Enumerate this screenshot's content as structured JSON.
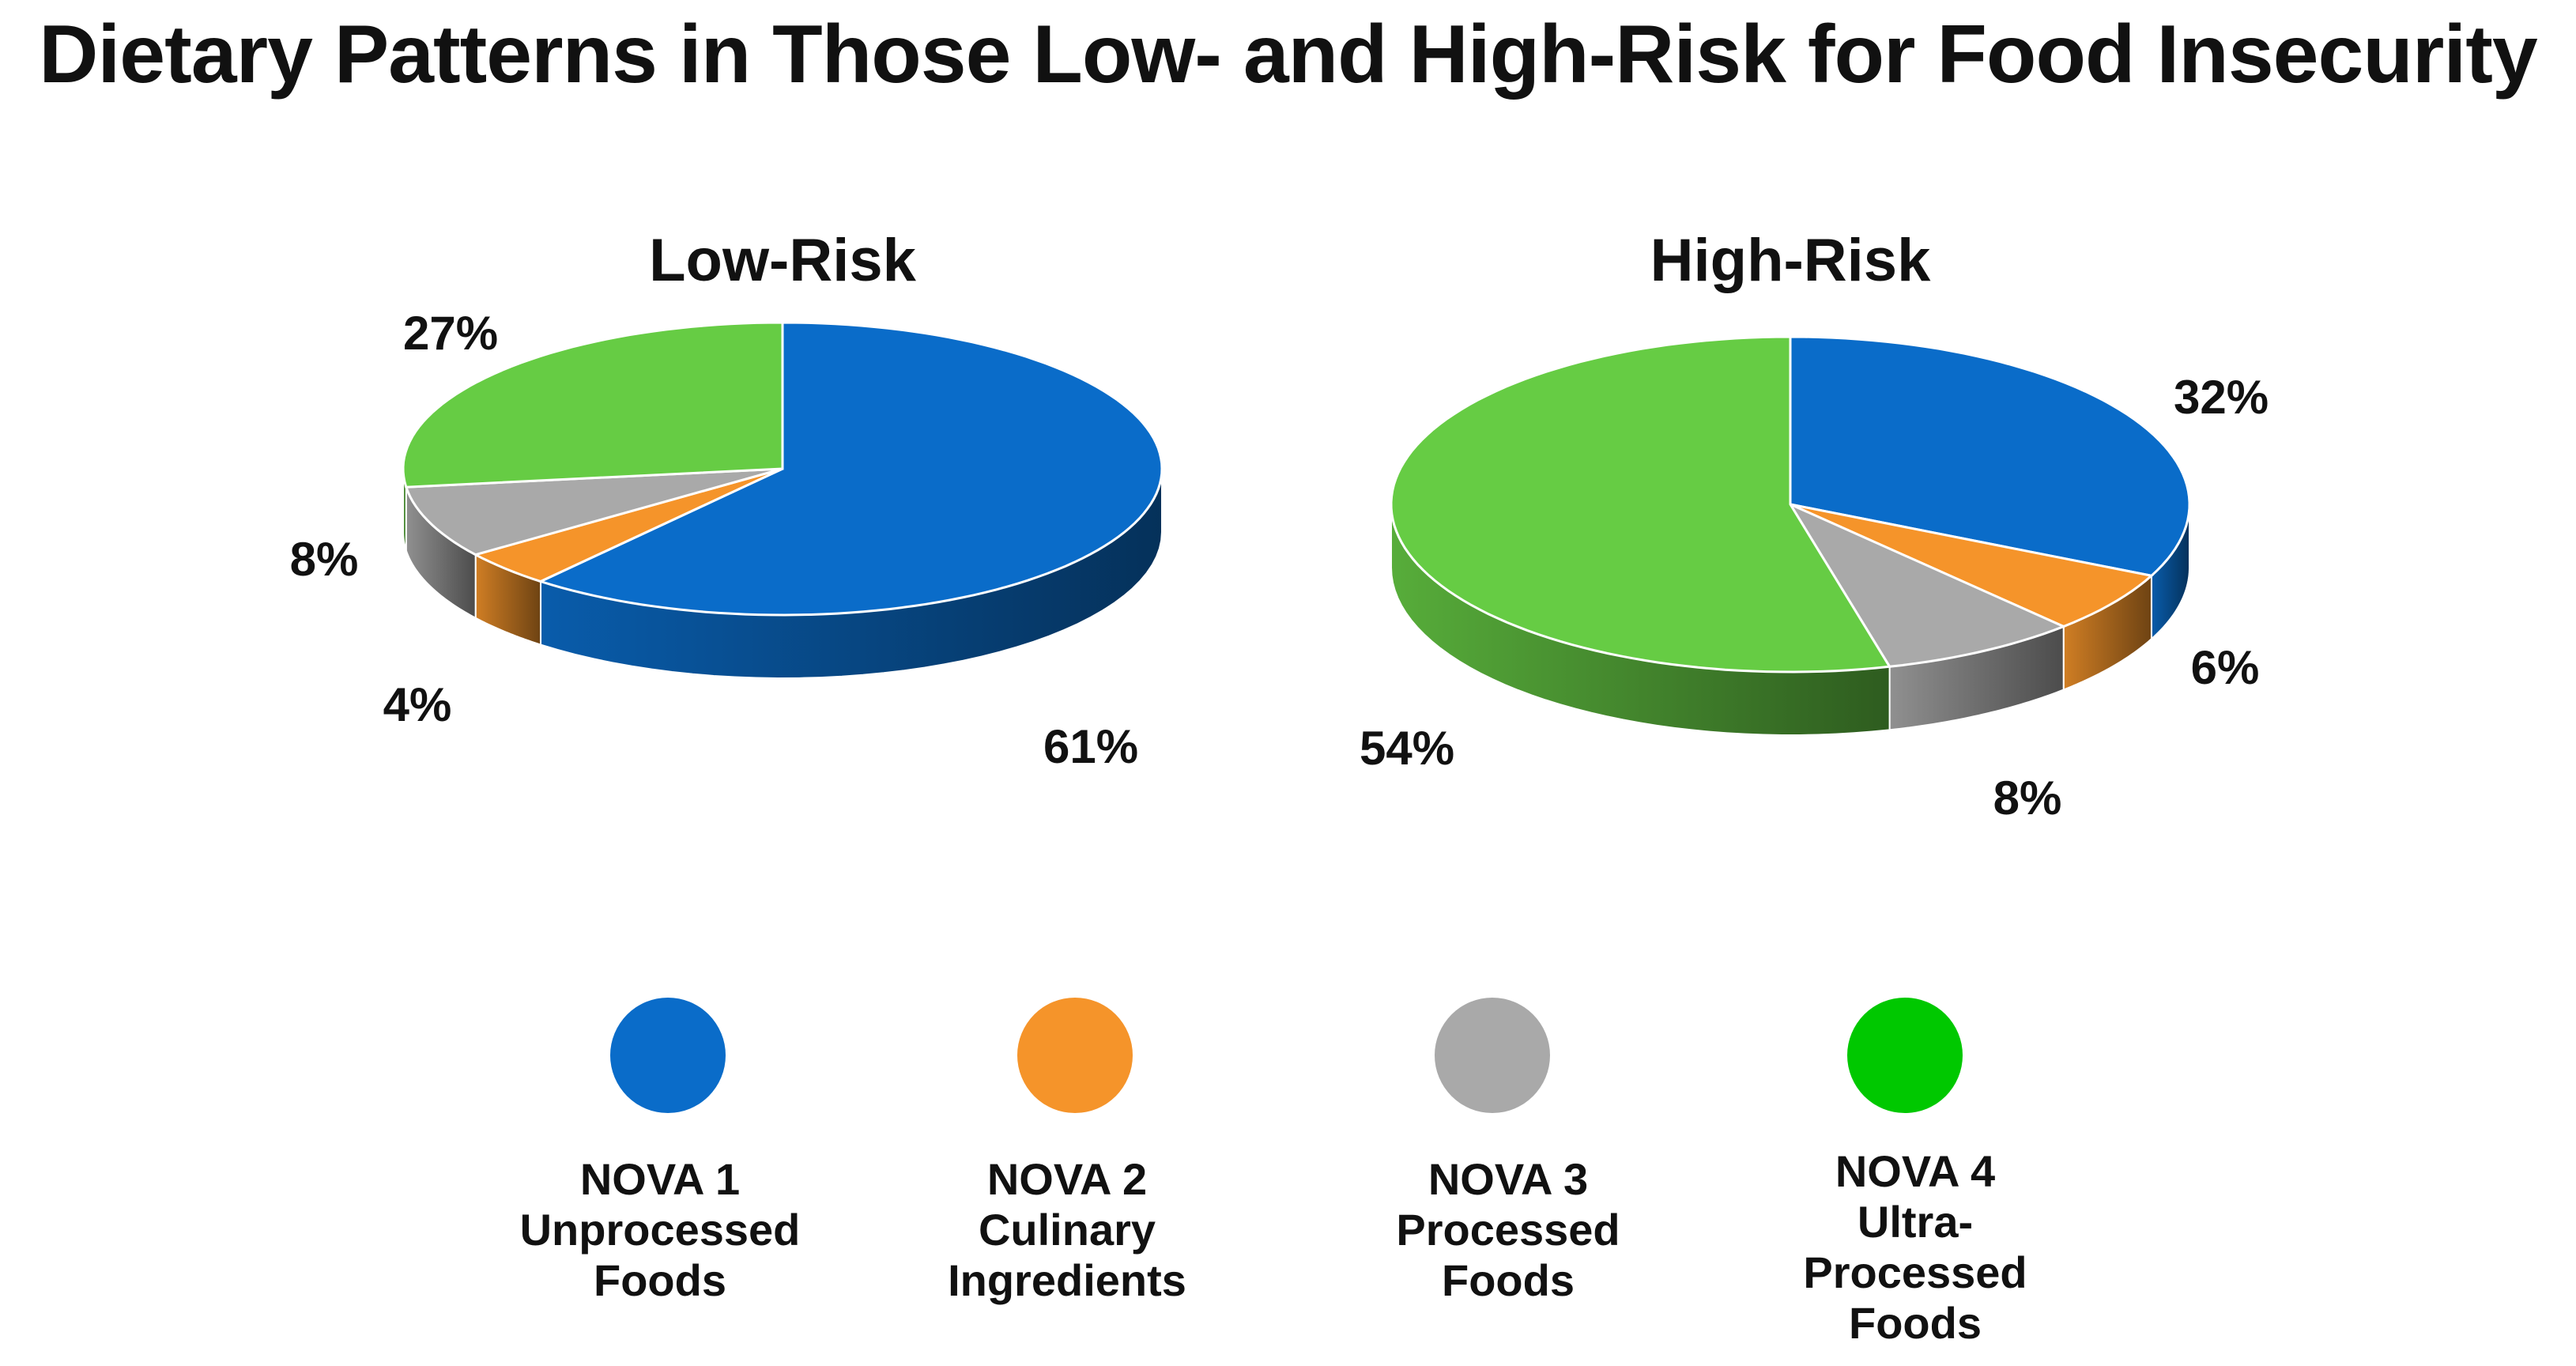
{
  "title": "Dietary Patterns in Those Low- and High-Risk for Food Insecurity",
  "colors": {
    "nova1": "#0a6cc9",
    "nova2": "#f5942a",
    "nova3": "#a9a9a9",
    "nova4": "#66cc44"
  },
  "chart_data": [
    {
      "type": "pie",
      "style": "3d",
      "title": "Low-Risk",
      "categories": [
        "NOVA 1 Unprocessed Foods",
        "NOVA 2 Culinary Ingredients",
        "NOVA 3 Processed Foods",
        "NOVA 4 Ultra-Processed Foods"
      ],
      "values": [
        61,
        4,
        8,
        27
      ],
      "labels": [
        "61%",
        "4%",
        "8%",
        "27%"
      ]
    },
    {
      "type": "pie",
      "style": "3d",
      "title": "High-Risk",
      "categories": [
        "NOVA 1 Unprocessed Foods",
        "NOVA 2 Culinary Ingredients",
        "NOVA 3 Processed Foods",
        "NOVA 4 Ultra-Processed Foods"
      ],
      "values": [
        32,
        6,
        8,
        54
      ],
      "labels": [
        "32%",
        "6%",
        "8%",
        "54%"
      ]
    }
  ],
  "legend": [
    {
      "code": "NOVA 1",
      "lines": [
        "Unprocessed",
        "Foods"
      ],
      "color": "#0a6cc9"
    },
    {
      "code": "NOVA 2",
      "lines": [
        "Culinary",
        "Ingredients"
      ],
      "color": "#f5942a"
    },
    {
      "code": "NOVA 3",
      "lines": [
        "Processed",
        "Foods"
      ],
      "color": "#a9a9a9"
    },
    {
      "code": "NOVA 4",
      "lines": [
        "Ultra-",
        "Processed",
        "Foods"
      ],
      "color": "#00c800"
    }
  ]
}
